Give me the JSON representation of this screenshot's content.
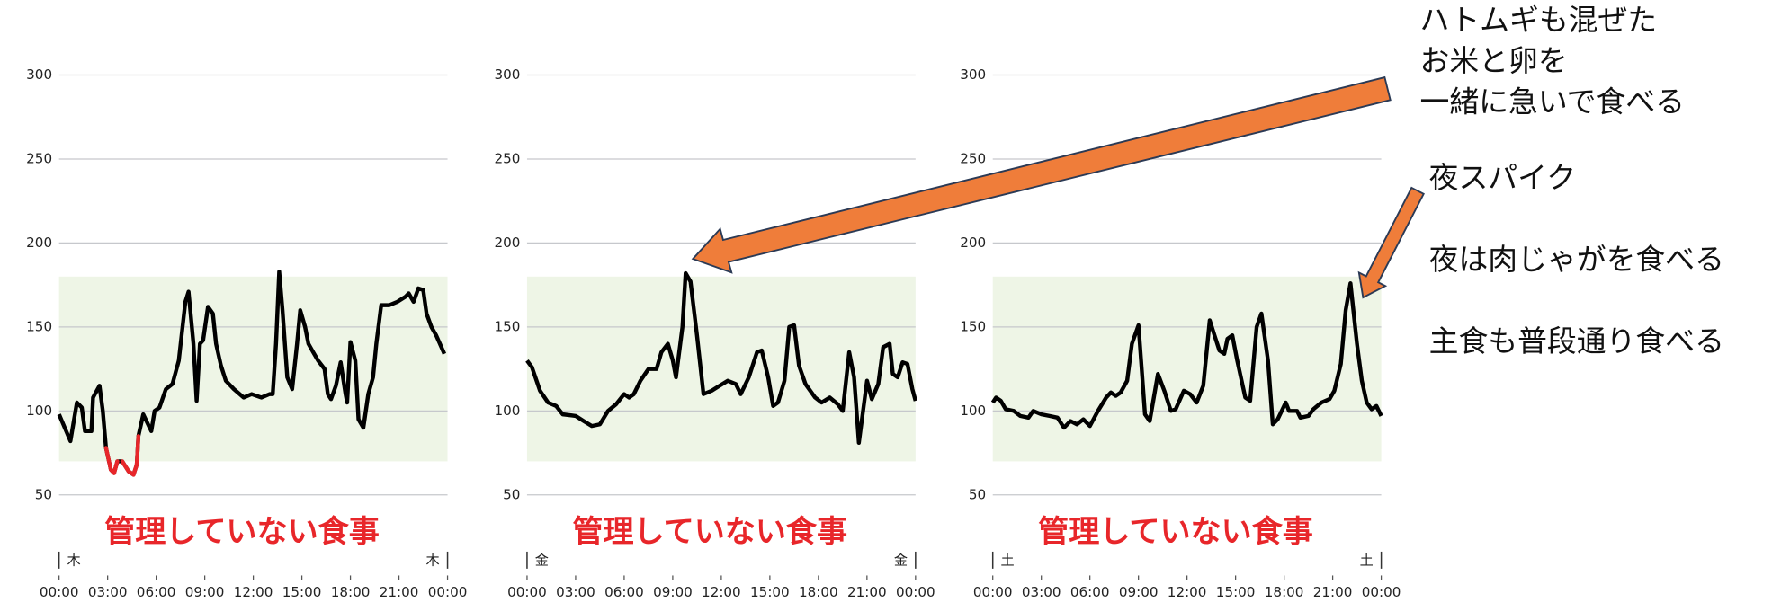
{
  "chart_data": [
    {
      "type": "line",
      "caption": "管理していない食事",
      "day_labels": [
        "木",
        "木"
      ],
      "color": "#000000",
      "low_color": "#e8262a",
      "target_range": [
        70,
        180
      ],
      "target_color": "#eef5e6",
      "grid": true,
      "xlim": [
        0,
        24
      ],
      "ylim": [
        50,
        300
      ],
      "yticks": [
        50,
        100,
        150,
        200,
        250,
        300
      ],
      "xticks": [
        {
          "value": 0,
          "label": "00:00"
        },
        {
          "value": 3,
          "label": "03:00"
        },
        {
          "value": 6,
          "label": "06:00"
        },
        {
          "value": 9,
          "label": "09:00"
        },
        {
          "value": 12,
          "label": "12:00"
        },
        {
          "value": 15,
          "label": "15:00"
        },
        {
          "value": 18,
          "label": "18:00"
        },
        {
          "value": 21,
          "label": "21:00"
        },
        {
          "value": 24,
          "label": "00:00"
        }
      ],
      "x": [
        0,
        0.7,
        1.1,
        1.4,
        1.6,
        2.0,
        2.1,
        2.5,
        2.7,
        2.9,
        3.2,
        3.4,
        3.6,
        3.9,
        4.3,
        4.6,
        4.8,
        4.9,
        5.2,
        5.7,
        5.9,
        6.2,
        6.6,
        7.0,
        7.4,
        7.8,
        8.0,
        8.3,
        8.5,
        8.7,
        8.9,
        9.2,
        9.5,
        9.7,
        10.0,
        10.3,
        10.8,
        11.4,
        11.9,
        12.5,
        13.0,
        13.2,
        13.4,
        13.6,
        13.8,
        14.1,
        14.4,
        14.7,
        14.9,
        15.2,
        15.4,
        15.7,
        16.0,
        16.4,
        16.6,
        16.8,
        17.1,
        17.4,
        17.7,
        17.8,
        18.0,
        18.3,
        18.5,
        18.8,
        19.1,
        19.4,
        19.6,
        19.9,
        20.4,
        20.9,
        21.4,
        21.6,
        21.9,
        22.2,
        22.5,
        22.7,
        23.0,
        23.3,
        23.8
      ],
      "values": [
        98,
        82,
        105,
        102,
        88,
        88,
        108,
        115,
        100,
        78,
        65,
        63,
        70,
        70,
        64,
        62,
        68,
        85,
        98,
        88,
        100,
        102,
        113,
        116,
        130,
        165,
        171,
        140,
        106,
        140,
        142,
        162,
        158,
        140,
        127,
        118,
        113,
        108,
        110,
        108,
        110,
        110,
        140,
        183,
        160,
        120,
        113,
        140,
        160,
        150,
        140,
        135,
        130,
        125,
        110,
        107,
        115,
        129,
        110,
        105,
        141,
        130,
        95,
        90,
        110,
        120,
        140,
        163,
        163,
        165,
        168,
        170,
        165,
        173,
        172,
        158,
        150,
        145,
        134
      ]
    },
    {
      "type": "line",
      "caption": "管理していない食事",
      "day_labels": [
        "金",
        "金"
      ],
      "color": "#000000",
      "low_color": "#e8262a",
      "target_range": [
        70,
        180
      ],
      "target_color": "#eef5e6",
      "grid": true,
      "xlim": [
        0,
        24
      ],
      "ylim": [
        50,
        300
      ],
      "yticks": [
        50,
        100,
        150,
        200,
        250,
        300
      ],
      "xticks": [
        {
          "value": 0,
          "label": "00:00"
        },
        {
          "value": 3,
          "label": "03:00"
        },
        {
          "value": 6,
          "label": "06:00"
        },
        {
          "value": 9,
          "label": "09:00"
        },
        {
          "value": 12,
          "label": "12:00"
        },
        {
          "value": 15,
          "label": "15:00"
        },
        {
          "value": 18,
          "label": "18:00"
        },
        {
          "value": 21,
          "label": "21:00"
        },
        {
          "value": 24,
          "label": "00:00"
        }
      ],
      "x": [
        0,
        0.3,
        0.8,
        1.3,
        1.8,
        2.2,
        3,
        3.5,
        4,
        4.5,
        5,
        5.5,
        6,
        6.3,
        6.6,
        7,
        7.5,
        8,
        8.3,
        8.7,
        9,
        9.2,
        9.6,
        9.8,
        10.1,
        10.5,
        10.9,
        11.4,
        11.9,
        12.4,
        12.9,
        13.2,
        13.7,
        14.2,
        14.5,
        14.9,
        15.2,
        15.5,
        15.9,
        16.2,
        16.5,
        16.8,
        17.2,
        17.8,
        18.2,
        18.7,
        19.2,
        19.5,
        19.9,
        20.2,
        20.5,
        21,
        21.3,
        21.7,
        22,
        22.4,
        22.6,
        22.9,
        23.2,
        23.5,
        23.8,
        24
      ],
      "values": [
        130,
        126,
        112,
        105,
        103,
        98,
        97,
        94,
        91,
        92,
        100,
        104,
        110,
        108,
        110,
        118,
        125,
        125,
        135,
        140,
        130,
        120,
        150,
        182,
        177,
        145,
        110,
        112,
        115,
        118,
        116,
        110,
        120,
        135,
        136,
        120,
        103,
        105,
        118,
        150,
        151,
        127,
        116,
        108,
        105,
        108,
        104,
        100,
        135,
        120,
        81,
        118,
        107,
        116,
        138,
        140,
        122,
        120,
        129,
        128,
        113,
        106
      ]
    },
    {
      "type": "line",
      "caption": "管理していない食事",
      "day_labels": [
        "土",
        "土"
      ],
      "color": "#000000",
      "low_color": "#e8262a",
      "target_range": [
        70,
        180
      ],
      "target_color": "#eef5e6",
      "grid": true,
      "xlim": [
        0,
        24
      ],
      "ylim": [
        50,
        300
      ],
      "yticks": [
        50,
        100,
        150,
        200,
        250,
        300
      ],
      "xticks": [
        {
          "value": 0,
          "label": "00:00"
        },
        {
          "value": 3,
          "label": "03:00"
        },
        {
          "value": 6,
          "label": "06:00"
        },
        {
          "value": 9,
          "label": "09:00"
        },
        {
          "value": 12,
          "label": "12:00"
        },
        {
          "value": 15,
          "label": "15:00"
        },
        {
          "value": 18,
          "label": "18:00"
        },
        {
          "value": 21,
          "label": "21:00"
        },
        {
          "value": 24,
          "label": "00:00"
        }
      ],
      "x": [
        0,
        0.2,
        0.5,
        0.8,
        1.3,
        1.7,
        2.2,
        2.5,
        3,
        3.5,
        4,
        4.4,
        4.8,
        5.2,
        5.6,
        6,
        6.5,
        7,
        7.3,
        7.6,
        7.9,
        8.3,
        8.6,
        9,
        9.4,
        9.7,
        10.2,
        10.6,
        11,
        11.3,
        11.8,
        12.2,
        12.6,
        13,
        13.4,
        13.7,
        14,
        14.3,
        14.5,
        14.8,
        15.1,
        15.6,
        15.9,
        16.3,
        16.6,
        17,
        17.3,
        17.6,
        18.1,
        18.3,
        18.8,
        19,
        19.5,
        19.8,
        20.3,
        20.8,
        21.1,
        21.5,
        21.8,
        22.1,
        22.5,
        22.8,
        23.1,
        23.4,
        23.7,
        24
      ],
      "values": [
        105,
        108,
        106,
        101,
        100,
        97,
        96,
        100,
        98,
        97,
        96,
        90,
        94,
        92,
        95,
        91,
        100,
        108,
        111,
        109,
        111,
        118,
        140,
        151,
        98,
        94,
        122,
        112,
        100,
        101,
        112,
        110,
        105,
        115,
        154,
        145,
        136,
        134,
        143,
        145,
        130,
        108,
        106,
        150,
        158,
        130,
        92,
        95,
        105,
        100,
        100,
        96,
        97,
        101,
        105,
        107,
        112,
        128,
        160,
        176,
        140,
        118,
        105,
        101,
        103,
        97
      ]
    }
  ],
  "annotations": [
    "ハトムギも混ぜた",
    "お米と卵を",
    "一緒に急いで食べる",
    "夜スパイク",
    "夜は肉じゃがを食べる",
    "主食も普段通り食べる"
  ]
}
